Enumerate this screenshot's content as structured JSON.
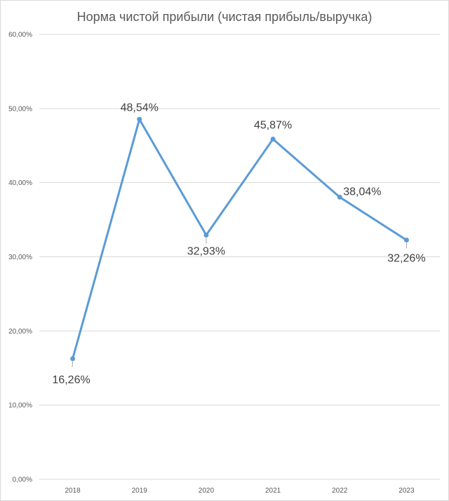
{
  "chart_data": {
    "type": "line",
    "title": "Норма чистой прибыли (чистая прибыль/выручка)",
    "categories": [
      "2018",
      "2019",
      "2020",
      "2021",
      "2022",
      "2023"
    ],
    "series": [
      {
        "values": [
          16.26,
          48.54,
          32.93,
          45.87,
          38.04,
          32.26
        ],
        "labels": [
          "16,26%",
          "48,54%",
          "32,93%",
          "45,87%",
          "38,04%",
          "32,26%"
        ],
        "color": "#5b9bd5"
      }
    ],
    "ylim": [
      0,
      60
    ],
    "yticks": [
      {
        "value": 0,
        "label": "0,00%"
      },
      {
        "value": 10,
        "label": "10,00%"
      },
      {
        "value": 20,
        "label": "20,00%"
      },
      {
        "value": 30,
        "label": "30,00%"
      },
      {
        "value": 40,
        "label": "40,00%"
      },
      {
        "value": 50,
        "label": "50,00%"
      },
      {
        "value": 60,
        "label": "60,00%"
      }
    ],
    "grid": true,
    "legend": "none"
  }
}
